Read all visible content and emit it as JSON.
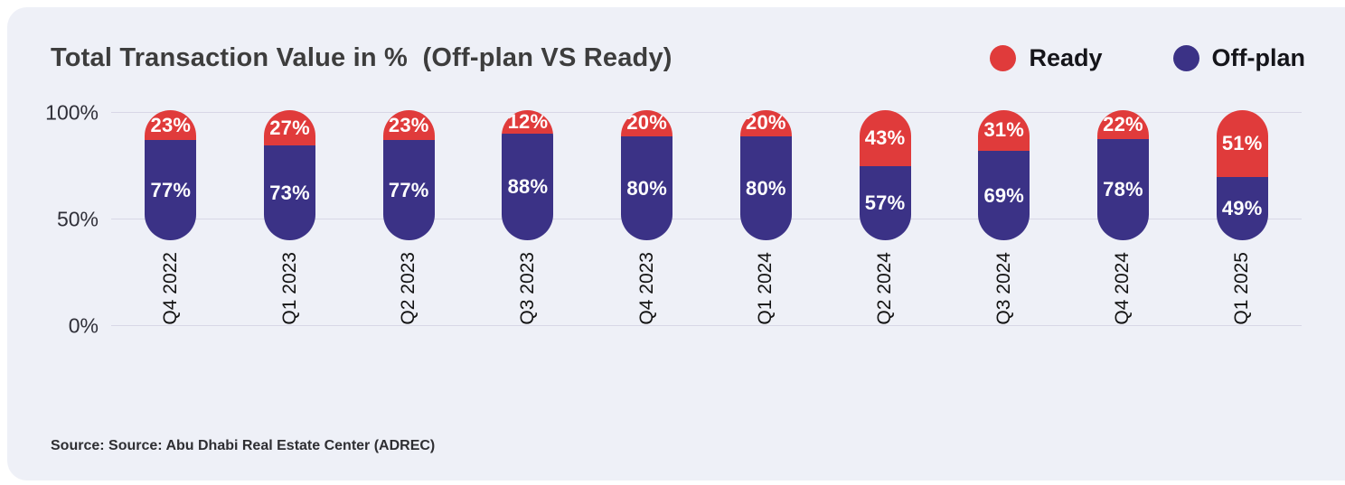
{
  "title": "Total Transaction Value in %  (Off-plan VS Ready)",
  "legend": {
    "ready": {
      "label": "Ready",
      "color": "#e03b3b"
    },
    "offplan": {
      "label": "Off-plan",
      "color": "#3b3286"
    }
  },
  "y_axis": {
    "t100": "100%",
    "t50": "50%",
    "t0": "0%"
  },
  "source_text": "Source: Source: Abu Dhabi Real Estate Center (ADREC)",
  "chart_data": {
    "type": "bar",
    "stacked": true,
    "title": "Total Transaction Value in %  (Off-plan VS Ready)",
    "categories": [
      "Q4 2022",
      "Q1 2023",
      "Q2 2023",
      "Q3 2023",
      "Q4 2023",
      "Q1 2024",
      "Q2 2024",
      "Q3 2024",
      "Q4 2024",
      "Q1 2025"
    ],
    "series": [
      {
        "name": "Ready",
        "color": "#e03b3b",
        "values": [
          23,
          27,
          23,
          12,
          20,
          20,
          43,
          31,
          22,
          51
        ]
      },
      {
        "name": "Off-plan",
        "color": "#3b3286",
        "values": [
          77,
          73,
          77,
          88,
          80,
          80,
          57,
          69,
          78,
          49
        ]
      }
    ],
    "value_suffix": "%",
    "ylim": [
      0,
      100
    ],
    "yticks": [
      0,
      50,
      100
    ],
    "grid": true,
    "legend_position": "top-right",
    "xlabel": "",
    "ylabel": ""
  }
}
